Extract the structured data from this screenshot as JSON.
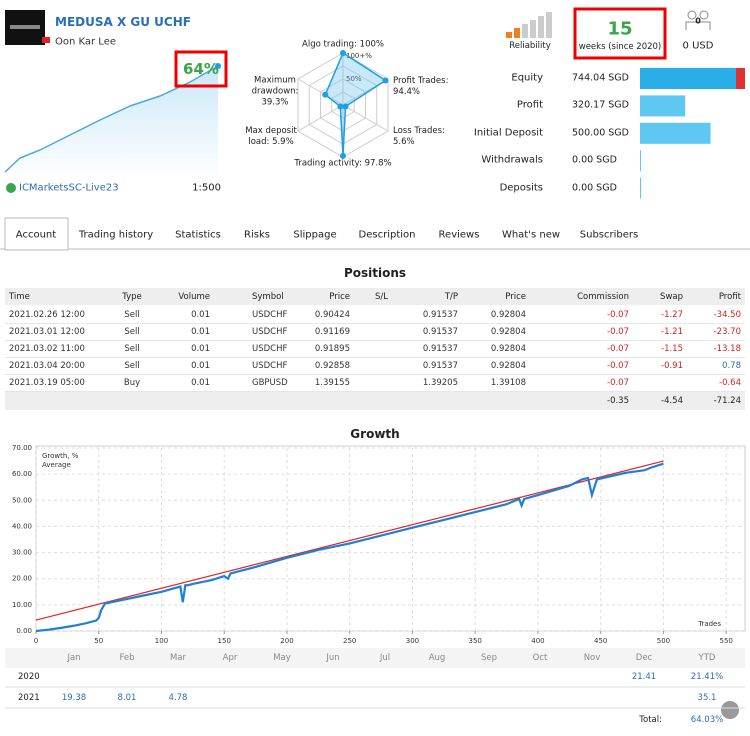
{
  "header": {
    "title": "MEDUSA X GU UCHF",
    "author": "Oon Kar Lee",
    "growth": "64%",
    "broker": "ICMarketsSC-Live23",
    "leverage": "1:500"
  },
  "radar": {
    "rlim": [
      0,
      100
    ],
    "scale_labels": [
      "100+%",
      "50%"
    ],
    "axes": [
      {
        "label": "Algo trading:",
        "value": 100,
        "value_label": "100%"
      },
      {
        "label": "Profit Trades:",
        "value": 94.4,
        "value_label": "94.4%"
      },
      {
        "label": "Loss Trades:",
        "value": 5.6,
        "value_label": "5.6%"
      },
      {
        "label": "Trading activity:",
        "value": 97.8,
        "value_label": "97.8%"
      },
      {
        "label": "Max deposit load:",
        "value": 5.9,
        "value_label": "5.9%"
      },
      {
        "label": "Maximum drawdown:",
        "value": 39.3,
        "value_label": "39.3%"
      }
    ]
  },
  "summary": {
    "reliability": "Reliability",
    "weeks": "15",
    "weeks_label": "weeks (since 2020)",
    "subscribers": "0",
    "subscription": "0 USD"
  },
  "stats": [
    {
      "label": "Equity",
      "value": 744.04,
      "value_label": "744.04 SGD"
    },
    {
      "label": "Profit",
      "value": 320.17,
      "value_label": "320.17 SGD"
    },
    {
      "label": "Initial Deposit",
      "value": 500.0,
      "value_label": "500.00 SGD"
    },
    {
      "label": "Withdrawals",
      "value": 0,
      "value_label": "0.00 SGD"
    },
    {
      "label": "Deposits",
      "value": 0,
      "value_label": "0.00 SGD"
    }
  ],
  "tabs": [
    "Account",
    "Trading history",
    "Statistics",
    "Risks",
    "Slippage",
    "Description",
    "Reviews",
    "What's new",
    "Subscribers"
  ],
  "positions": {
    "title": "Positions",
    "columns": [
      "Time",
      "Type",
      "Volume",
      "Symbol",
      "Price",
      "S/L",
      "T/P",
      "Price",
      "Commission",
      "Swap",
      "Profit"
    ],
    "rows": [
      [
        "2021.02.26 12:00",
        "Sell",
        "0.01",
        "USDCHF",
        "0.90424",
        null,
        "0.91537",
        "0.92804",
        "-0.07",
        "-1.27",
        "-34.50"
      ],
      [
        "2021.03.01 12:00",
        "Sell",
        "0.01",
        "USDCHF",
        "0.91169",
        null,
        "0.91537",
        "0.92804",
        "-0.07",
        "-1.21",
        "-23.70"
      ],
      [
        "2021.03.02 11:00",
        "Sell",
        "0.01",
        "USDCHF",
        "0.91895",
        null,
        "0.91537",
        "0.92804",
        "-0.07",
        "-1.15",
        "-13.18"
      ],
      [
        "2021.03.04 20:00",
        "Sell",
        "0.01",
        "USDCHF",
        "0.92858",
        null,
        "0.91537",
        "0.92804",
        "-0.07",
        "-0.91",
        "0.78"
      ],
      [
        "2021.03.19 05:00",
        "Buy",
        "0.01",
        "GBPUSD",
        "1.39155",
        null,
        "1.39205",
        "1.39108",
        "-0.07",
        null,
        "-0.64"
      ]
    ],
    "totals": [
      "-0.35",
      "-4.54",
      "-71.24"
    ]
  },
  "chart_data": {
    "type": "line",
    "title": "Growth",
    "x_label": "Trades",
    "xlim": [
      0,
      565
    ],
    "xticks": [
      0,
      50,
      100,
      150,
      200,
      250,
      300,
      350,
      400,
      450,
      500,
      550
    ],
    "ylim": [
      0,
      70
    ],
    "yticks": [
      {
        "value": 0,
        "label": "0.00"
      },
      {
        "value": 10,
        "label": "10.00"
      },
      {
        "value": 20,
        "label": "20.00"
      },
      {
        "value": 30,
        "label": "30.00"
      },
      {
        "value": 40,
        "label": "40.00"
      },
      {
        "value": 50,
        "label": "50.00"
      },
      {
        "value": 60,
        "label": "60.00"
      },
      {
        "value": 70,
        "label": "70.00"
      }
    ],
    "grid": true,
    "series": [
      {
        "name": "Growth, %",
        "color": "#1f7fd6",
        "x": [
          0,
          10,
          20,
          30,
          40,
          48,
          50,
          52,
          55,
          80,
          100,
          115,
          117,
          119,
          121,
          125,
          140,
          150,
          153,
          155,
          175,
          200,
          225,
          250,
          275,
          300,
          325,
          350,
          375,
          385,
          387,
          389,
          400,
          425,
          435,
          440,
          443,
          447,
          470,
          485,
          490,
          500
        ],
        "values": [
          0,
          0.5,
          1.2,
          2.0,
          3.0,
          4.0,
          5.0,
          8.0,
          10.5,
          13.0,
          15.0,
          17.0,
          11.0,
          17.5,
          17.5,
          18.0,
          19.5,
          21.0,
          20.0,
          22.0,
          24.5,
          28.0,
          31.0,
          33.5,
          36.5,
          39.5,
          42.5,
          45.5,
          48.5,
          50.5,
          48.0,
          50.5,
          52.0,
          55.5,
          58.0,
          58.5,
          52.0,
          58.0,
          60.5,
          61.5,
          62.5,
          64.0
        ]
      },
      {
        "name": "Average",
        "color": "#e02424",
        "x": [
          0,
          500
        ],
        "values": [
          4.2,
          65
        ]
      }
    ]
  },
  "monthly": {
    "columns": [
      "Jan",
      "Feb",
      "Mar",
      "Apr",
      "May",
      "Jun",
      "Jul",
      "Aug",
      "Sep",
      "Oct",
      "Nov",
      "Dec",
      "YTD"
    ],
    "rows": [
      {
        "year": "2020",
        "cells": [
          null,
          null,
          null,
          null,
          null,
          null,
          null,
          null,
          null,
          null,
          null,
          "21.41",
          "21.41%"
        ]
      },
      {
        "year": "2021",
        "cells": [
          "19.38",
          "8.01",
          "4.78",
          null,
          null,
          null,
          null,
          null,
          null,
          null,
          null,
          null,
          "35.1"
        ]
      }
    ],
    "total_label": "Total:",
    "total": "64.03%"
  }
}
